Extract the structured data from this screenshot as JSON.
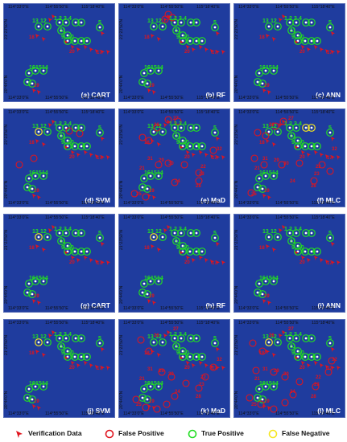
{
  "axes": {
    "lon_labels": [
      "114°33'0\"E",
      "114°55'50\"E",
      "115°18'40\"E"
    ],
    "lat_labels": [
      "21°23'50\"N",
      "20°44'0\"N"
    ]
  },
  "panels": [
    {
      "label": "(a) CART"
    },
    {
      "label": "(b) RF"
    },
    {
      "label": "(c) ANN"
    },
    {
      "label": "(d) SVM"
    },
    {
      "label": "(e) MaD"
    },
    {
      "label": "(f) MLC"
    },
    {
      "label": "(g) CART"
    },
    {
      "label": "(h) RF"
    },
    {
      "label": "(i) ANN"
    },
    {
      "label": "(j) SVM"
    },
    {
      "label": "(k) MaD"
    },
    {
      "label": "(l) MLC"
    }
  ],
  "legend": {
    "verification": "Verification Data",
    "false_positive": "False Positive",
    "true_positive": "True Positive",
    "false_negative": "False Negative"
  },
  "colors": {
    "sea": "#1f3c9e",
    "verification": "#e0141e",
    "false_positive": "#e0141e",
    "true_positive": "#22dd22",
    "false_negative": "#f5e61e",
    "island": "#ffffff"
  },
  "site_labels": {
    "top_green": [
      "13",
      "12",
      "1",
      "2",
      "3",
      "4",
      "11",
      "9",
      "10",
      "8",
      "7",
      "6",
      "5"
    ],
    "bottom_green": [
      "16",
      "15",
      "14"
    ],
    "red_labels": [
      "18",
      "19",
      "17",
      "20",
      "21",
      "22",
      "23",
      "24",
      "25",
      "26",
      "27",
      "28",
      "29",
      "30",
      "31",
      "32"
    ]
  }
}
